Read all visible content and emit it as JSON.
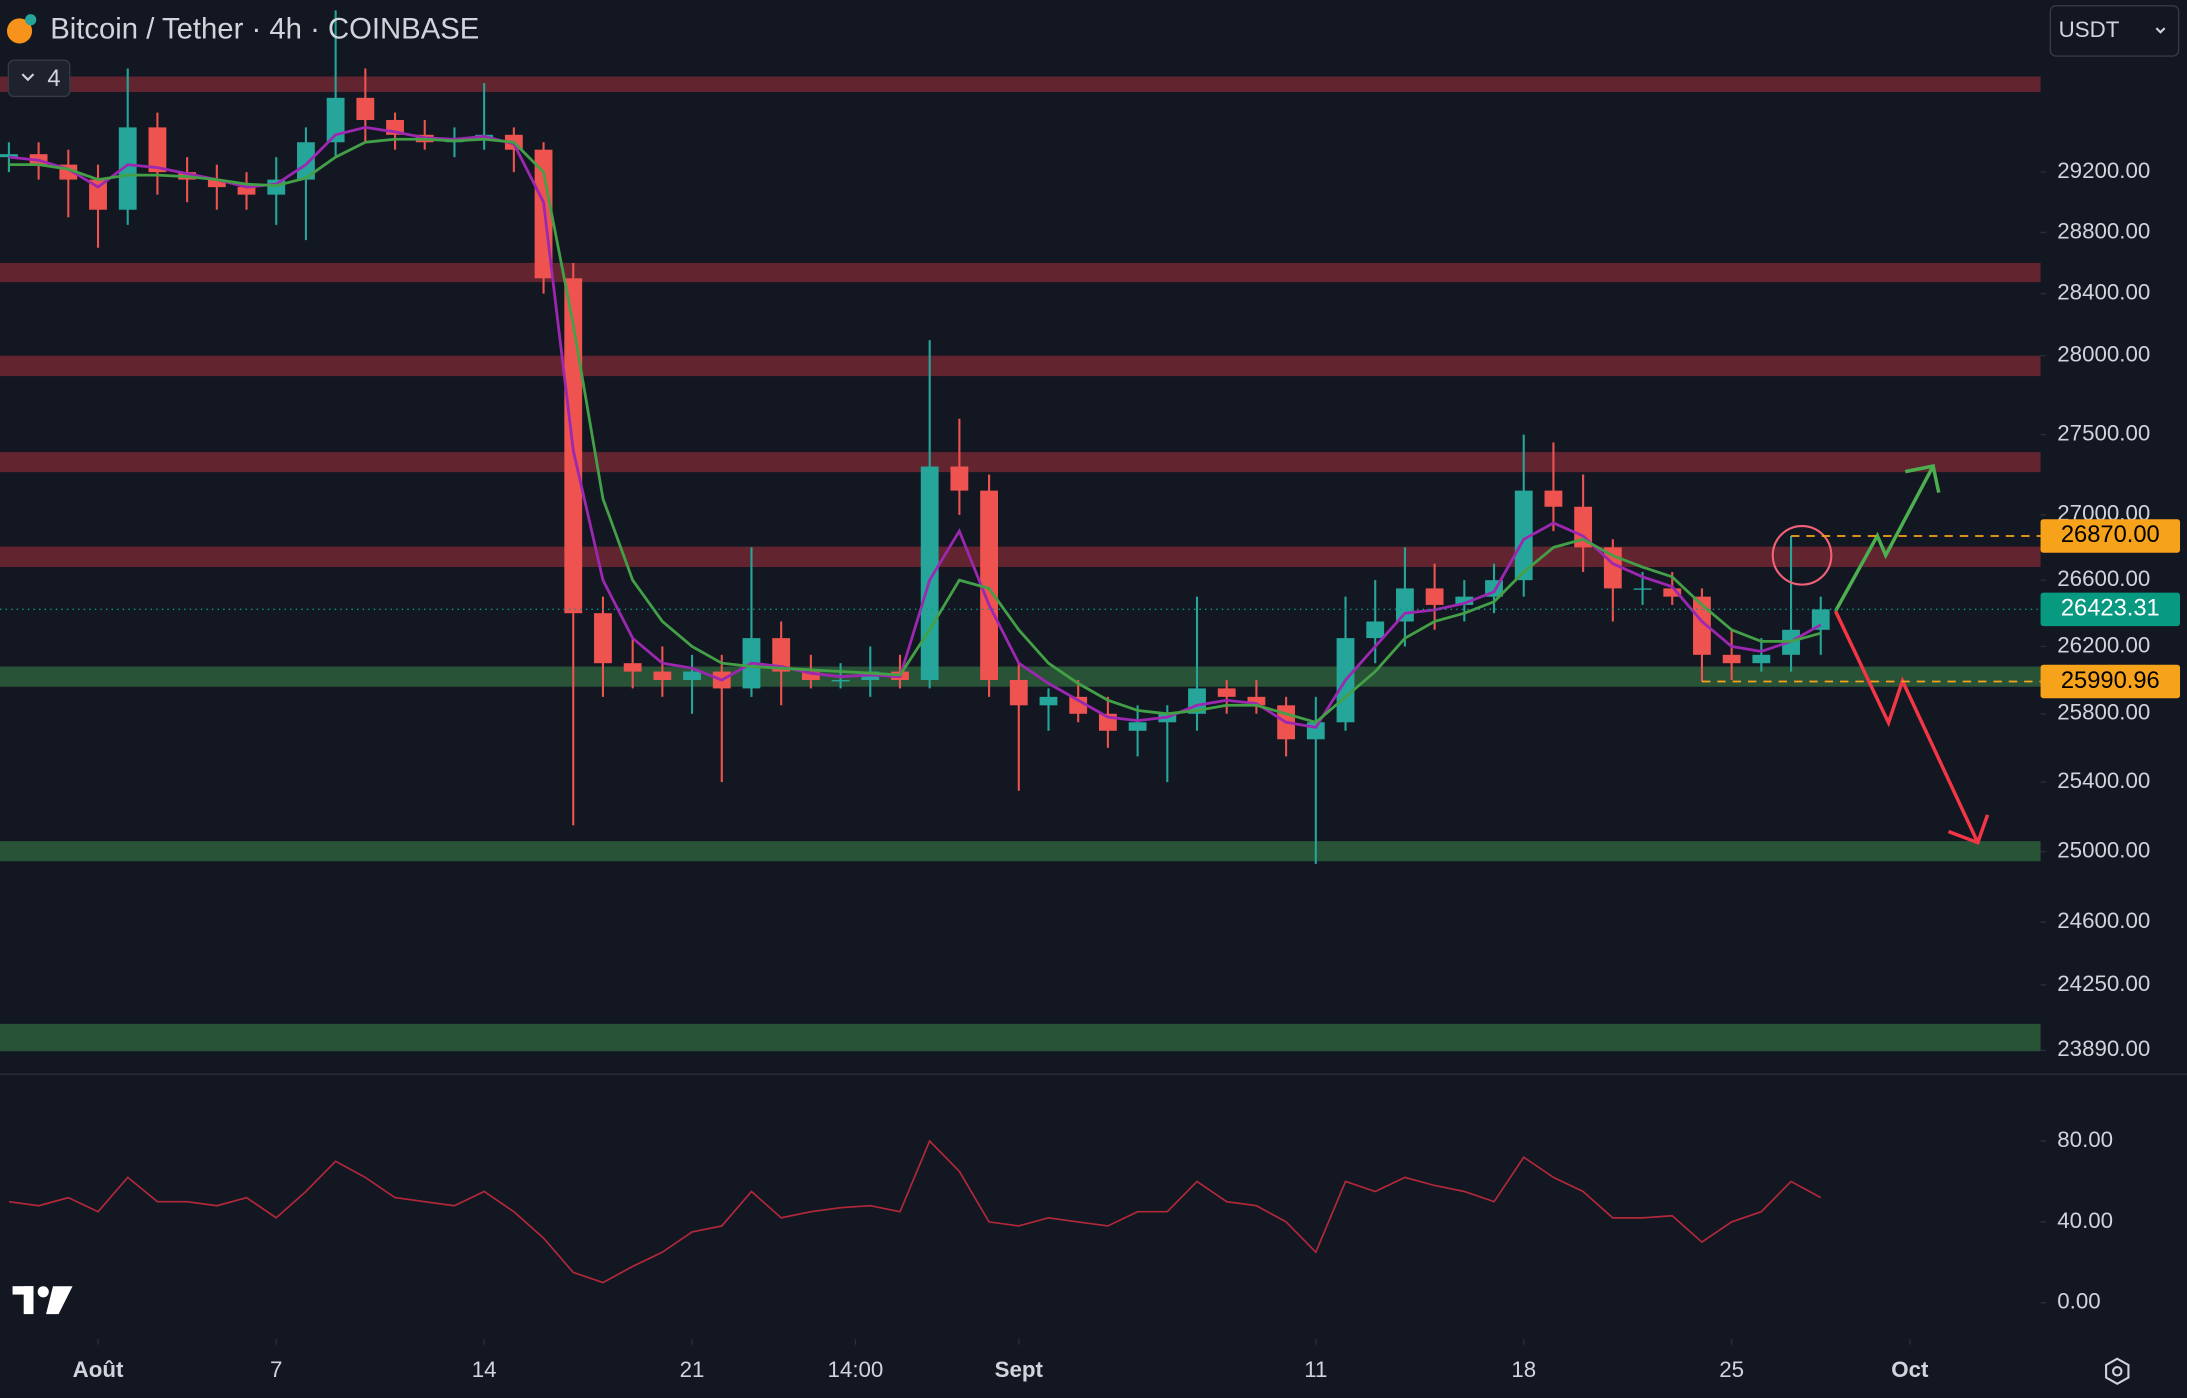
{
  "chart_data": {
    "type": "candlestick",
    "title": "Bitcoin / Tether · 4h · COINBASE",
    "indicator_count": 4,
    "currency": "USDT",
    "up_color": "#26a69a",
    "down_color": "#ef5350",
    "log_scale": true,
    "x": [
      -3,
      -2,
      -1,
      0,
      1,
      2,
      3,
      4,
      5,
      6,
      7,
      8,
      9,
      10,
      11,
      12,
      13,
      14,
      15,
      16,
      17,
      18,
      19,
      20,
      21,
      22,
      23,
      24,
      25,
      26,
      27,
      28,
      29,
      30,
      31,
      32,
      33,
      34,
      35,
      36,
      37,
      38,
      39,
      40,
      41,
      42,
      43,
      44,
      45,
      46,
      47,
      48,
      49,
      50,
      51,
      52,
      53,
      54,
      55,
      56,
      57,
      58
    ],
    "open": [
      29300,
      29320,
      29250,
      29150,
      28950,
      29500,
      29200,
      29150,
      29100,
      29050,
      29150,
      29400,
      29700,
      29550,
      29450,
      29400,
      29420,
      29450,
      29350,
      28500,
      26400,
      26100,
      26050,
      26000,
      26050,
      25950,
      26250,
      26050,
      26000,
      26000,
      26050,
      26000,
      27300,
      27150,
      26000,
      25850,
      25900,
      25800,
      25700,
      25750,
      25800,
      25950,
      25900,
      25850,
      25650,
      25750,
      26250,
      26350,
      26550,
      26450,
      26500,
      26600,
      27150,
      27050,
      26800,
      26550,
      26550,
      26500,
      26150,
      26100,
      26150,
      26300
    ],
    "high": [
      29400,
      29400,
      29350,
      29250,
      29900,
      29600,
      29300,
      29250,
      29200,
      29300,
      29500,
      30300,
      29900,
      29600,
      29550,
      29500,
      29800,
      29500,
      29400,
      28600,
      26500,
      26250,
      26200,
      26150,
      26150,
      26800,
      26350,
      26150,
      26100,
      26200,
      26150,
      28100,
      27600,
      27250,
      26100,
      25950,
      26000,
      25900,
      25850,
      25850,
      26500,
      26000,
      26000,
      25900,
      25900,
      26500,
      26600,
      26800,
      26700,
      26600,
      26700,
      27500,
      27450,
      27250,
      26850,
      26650,
      26650,
      26550,
      26300,
      26250,
      26870,
      26500
    ],
    "low": [
      29200,
      29150,
      28900,
      28700,
      28850,
      29050,
      29000,
      28950,
      28950,
      28850,
      28750,
      29300,
      29400,
      29350,
      29350,
      29300,
      29350,
      29200,
      28400,
      25150,
      25900,
      25950,
      25900,
      25800,
      25400,
      25900,
      25850,
      25950,
      25950,
      25900,
      25950,
      25950,
      27000,
      25900,
      25350,
      25700,
      25750,
      25600,
      25550,
      25400,
      25700,
      25800,
      25800,
      25550,
      24930,
      25700,
      26100,
      26200,
      26300,
      26350,
      26400,
      26500,
      26900,
      26650,
      26350,
      26450,
      26450,
      25990,
      26000,
      26050,
      26050,
      26150
    ],
    "close": [
      29320,
      29250,
      29150,
      28950,
      29500,
      29200,
      29150,
      29100,
      29050,
      29150,
      29400,
      29700,
      29550,
      29450,
      29400,
      29420,
      29450,
      29350,
      28500,
      26400,
      26100,
      26050,
      26000,
      26050,
      25950,
      26250,
      26050,
      26000,
      26000,
      26050,
      26000,
      27300,
      27150,
      26000,
      25850,
      25900,
      25800,
      25700,
      25750,
      25800,
      25950,
      25900,
      25850,
      25650,
      25750,
      26250,
      26350,
      26550,
      26450,
      26500,
      26600,
      27150,
      27050,
      26800,
      26550,
      26550,
      26500,
      26150,
      26100,
      26150,
      26300,
      26423.31
    ],
    "lines": [
      {
        "color": "#9c27b0",
        "values": [
          29300,
          29280,
          29220,
          29100,
          29250,
          29230,
          29190,
          29150,
          29100,
          29120,
          29250,
          29450,
          29500,
          29470,
          29430,
          29420,
          29440,
          29390,
          29000,
          27400,
          26600,
          26250,
          26100,
          26070,
          26000,
          26100,
          26080,
          26040,
          26020,
          26030,
          26020,
          26600,
          26900,
          26450,
          26100,
          25980,
          25880,
          25780,
          25760,
          25780,
          25850,
          25880,
          25860,
          25750,
          25720,
          26000,
          26200,
          26400,
          26420,
          26460,
          26530,
          26850,
          26950,
          26870,
          26700,
          26620,
          26560,
          26350,
          26200,
          26170,
          26230,
          26330
        ]
      },
      {
        "color": "#43a047",
        "values": [
          29250,
          29250,
          29220,
          29150,
          29180,
          29180,
          29170,
          29150,
          29120,
          29110,
          29160,
          29300,
          29400,
          29420,
          29420,
          29410,
          29420,
          29400,
          29200,
          28200,
          27100,
          26600,
          26350,
          26200,
          26100,
          26080,
          26070,
          26060,
          26050,
          26040,
          26030,
          26300,
          26600,
          26550,
          26300,
          26100,
          25980,
          25880,
          25820,
          25800,
          25820,
          25850,
          25850,
          25800,
          25750,
          25900,
          26050,
          26250,
          26350,
          26400,
          26470,
          26650,
          26800,
          26850,
          26750,
          26680,
          26620,
          26450,
          26300,
          26230,
          26230,
          26280
        ]
      }
    ],
    "zones": [
      {
        "low": 29740,
        "high": 29845,
        "color": "#6b2631"
      },
      {
        "low": 28475,
        "high": 28600,
        "color": "#6b2631"
      },
      {
        "low": 27870,
        "high": 28000,
        "color": "#6b2631"
      },
      {
        "low": 27265,
        "high": 27390,
        "color": "#6b2631"
      },
      {
        "low": 26680,
        "high": 26805,
        "color": "#6b2631"
      },
      {
        "low": 25960,
        "high": 26080,
        "color": "#2c5a39"
      },
      {
        "low": 24945,
        "high": 25060,
        "color": "#2c5a39"
      },
      {
        "low": 23885,
        "high": 24035,
        "color": "#2c5a39"
      }
    ],
    "price_labels": [
      {
        "value": 26870,
        "label": "26870.00",
        "color": "#f7a21b",
        "text_color": "#000000",
        "style": "dashed",
        "from": 57
      },
      {
        "value": 26423.31,
        "label": "26423.31",
        "color": "#089981",
        "text_color": "#ffffff",
        "style": "dotted"
      },
      {
        "value": 25990.96,
        "label": "25990.96",
        "color": "#f7a21b",
        "text_color": "#000000",
        "style": "dashed",
        "from": 54
      }
    ],
    "ylim": [
      23760,
      30370
    ],
    "yticks": [
      {
        "value": 29200,
        "label": "29200.00"
      },
      {
        "value": 28800,
        "label": "28800.00"
      },
      {
        "value": 28400,
        "label": "28400.00"
      },
      {
        "value": 28000,
        "label": "28000.00"
      },
      {
        "value": 27500,
        "label": "27500.00"
      },
      {
        "value": 27000,
        "label": "27000.00"
      },
      {
        "value": 26600,
        "label": "26600.00"
      },
      {
        "value": 26200,
        "label": "26200.00"
      },
      {
        "value": 25800,
        "label": "25800.00"
      },
      {
        "value": 25400,
        "label": "25400.00"
      },
      {
        "value": 25000,
        "label": "25000.00"
      },
      {
        "value": 24600,
        "label": "24600.00"
      },
      {
        "value": 24250,
        "label": "24250.00"
      },
      {
        "value": 23890,
        "label": "23890.00"
      }
    ],
    "xlim": [
      -3.3,
      65.4
    ],
    "xticks": [
      {
        "value": 0,
        "label": "Août"
      },
      {
        "value": 6,
        "label": "7"
      },
      {
        "value": 13,
        "label": "14"
      },
      {
        "value": 20,
        "label": "21"
      },
      {
        "value": 25.5,
        "label": "14:00"
      },
      {
        "value": 31,
        "label": "Sept"
      },
      {
        "value": 41,
        "label": "11"
      },
      {
        "value": 48,
        "label": "18"
      },
      {
        "value": 55,
        "label": "25"
      },
      {
        "value": 61,
        "label": "Oct"
      }
    ],
    "rsi": {
      "color": "#b2283a",
      "ylim": [
        -18,
        113
      ],
      "yticks": [
        {
          "value": 80,
          "label": "80.00"
        },
        {
          "value": 40,
          "label": "40.00"
        },
        {
          "value": 0,
          "label": "0.00"
        }
      ],
      "values": [
        50,
        48,
        52,
        45,
        62,
        50,
        50,
        48,
        52,
        42,
        55,
        70,
        62,
        52,
        50,
        48,
        55,
        45,
        32,
        15,
        10,
        18,
        25,
        35,
        38,
        55,
        42,
        45,
        47,
        48,
        45,
        80,
        65,
        40,
        38,
        42,
        40,
        38,
        45,
        45,
        60,
        50,
        48,
        40,
        25,
        60,
        55,
        62,
        58,
        55,
        50,
        72,
        62,
        55,
        42,
        42,
        43,
        30,
        40,
        45,
        60,
        52
      ]
    }
  }
}
